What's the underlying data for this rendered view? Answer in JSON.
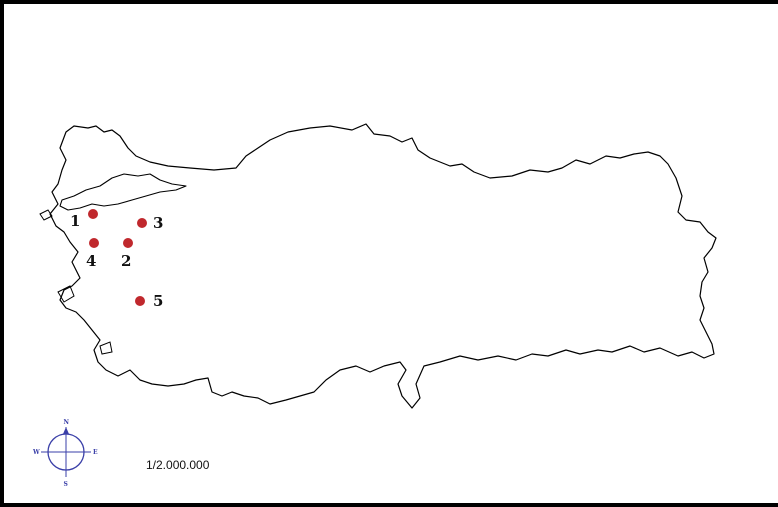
{
  "map": {
    "country_outline": "turkey-outline",
    "outline_color": "#000000",
    "marker_color": "#c0282d",
    "scale_text": "1/2.000.000"
  },
  "sites": [
    {
      "label": "1"
    },
    {
      "label": "2"
    },
    {
      "label": "3"
    },
    {
      "label": "4"
    },
    {
      "label": "5"
    }
  ],
  "compass": {
    "icon": "compass-rose-icon",
    "color": "#3a3fa8",
    "north": "N",
    "south": "S",
    "east": "E",
    "west": "W"
  }
}
